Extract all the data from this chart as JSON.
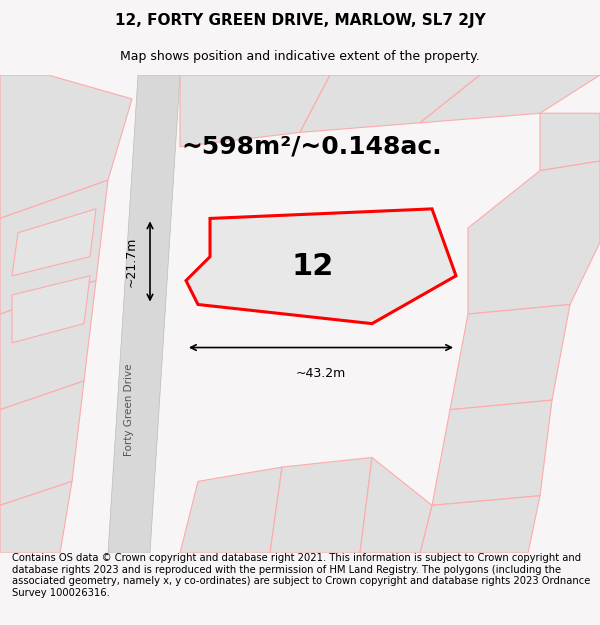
{
  "title": "12, FORTY GREEN DRIVE, MARLOW, SL7 2JY",
  "subtitle": "Map shows position and indicative extent of the property.",
  "area_label": "~598m²/~0.148ac.",
  "number_label": "12",
  "width_label": "~43.2m",
  "height_label": "~21.7m",
  "street_label": "Forty Green Drive",
  "copyright_text": "Contains OS data © Crown copyright and database right 2021. This information is subject to Crown copyright and database rights 2023 and is reproduced with the permission of HM Land Registry. The polygons (including the associated geometry, namely x, y co-ordinates) are subject to Crown copyright and database rights 2023 Ordnance Survey 100026316.",
  "bg_color": "#f7f5f5",
  "map_bg": "#f0eeee",
  "road_color": "#cccccc",
  "plot_fill": "#e8e8e8",
  "plot_edge": "#ff0000",
  "neighbor_fill": "#e0e0e0",
  "neighbor_edge": "#ffaaaa",
  "title_fontsize": 11,
  "subtitle_fontsize": 9,
  "area_fontsize": 18,
  "number_fontsize": 22,
  "label_fontsize": 9,
  "copyright_fontsize": 7.2
}
